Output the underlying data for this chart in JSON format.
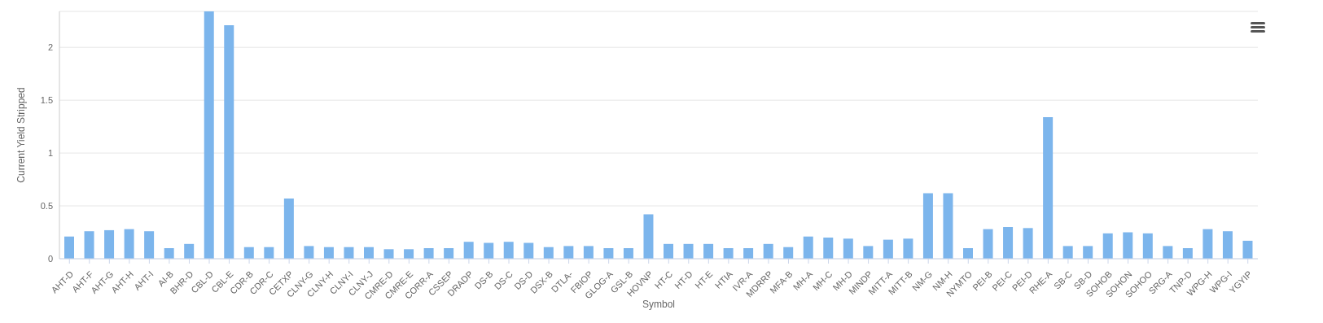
{
  "chart_data": {
    "type": "bar",
    "xlabel": "Symbol",
    "ylabel": "Current Yield Stripped",
    "categories": [
      "AHT-D",
      "AHT-F",
      "AHT-G",
      "AHT-H",
      "AHT-I",
      "AI-B",
      "BHR-D",
      "CBL-D",
      "CBL-E",
      "CDR-B",
      "CDR-C",
      "CETXP",
      "CLNY-G",
      "CLNY-H",
      "CLNY-I",
      "CLNY-J",
      "CMRE-D",
      "CMRE-E",
      "CORR-A",
      "CSSEP",
      "DRADP",
      "DS-B",
      "DS-C",
      "DS-D",
      "DSX-B",
      "DTLA-",
      "FBIOP",
      "GLOG-A",
      "GSL-B",
      "HOVNP",
      "HT-C",
      "HT-D",
      "HT-E",
      "HTIA",
      "IVR-A",
      "MDRRP",
      "MFA-B",
      "MH-A",
      "MH-C",
      "MH-D",
      "MINDP",
      "MITT-A",
      "MITT-B",
      "NM-G",
      "NM-H",
      "NYMTO",
      "PEI-B",
      "PEI-C",
      "PEI-D",
      "RHE-A",
      "SB-C",
      "SB-D",
      "SOHOB",
      "SOHON",
      "SOHOO",
      "SRG-A",
      "TNP-D",
      "WPG-H",
      "WPG-I",
      "YGYIP"
    ],
    "values": [
      0.21,
      0.26,
      0.27,
      0.28,
      0.26,
      0.1,
      0.14,
      2.34,
      2.21,
      0.11,
      0.11,
      0.57,
      0.12,
      0.11,
      0.11,
      0.11,
      0.09,
      0.09,
      0.1,
      0.1,
      0.16,
      0.15,
      0.16,
      0.15,
      0.11,
      0.12,
      0.12,
      0.1,
      0.1,
      0.42,
      0.14,
      0.14,
      0.14,
      0.1,
      0.1,
      0.14,
      0.11,
      0.21,
      0.2,
      0.19,
      0.12,
      0.18,
      0.19,
      0.62,
      0.62,
      0.1,
      0.28,
      0.3,
      0.29,
      1.34,
      0.12,
      0.12,
      0.24,
      0.25,
      0.24,
      0.12,
      0.1,
      0.28,
      0.26,
      0.17
    ],
    "color": "#7cb5ec",
    "ylim": [
      0,
      2.34
    ],
    "yticks": [
      0,
      0.5,
      1,
      1.5,
      2
    ],
    "grid": "y",
    "legend": false
  }
}
